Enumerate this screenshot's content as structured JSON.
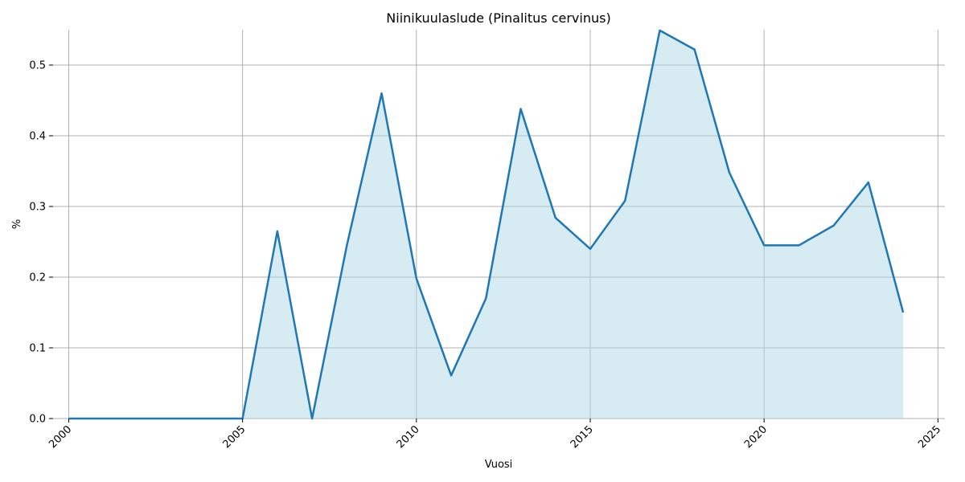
{
  "chart_data": {
    "type": "area",
    "title": "Niinikuulaslude (Pinalitus cervinus)",
    "xlabel": "Vuosi",
    "ylabel": "%",
    "x": [
      2000,
      2001,
      2002,
      2003,
      2004,
      2005,
      2006,
      2007,
      2008,
      2009,
      2010,
      2011,
      2012,
      2013,
      2014,
      2015,
      2016,
      2017,
      2018,
      2019,
      2020,
      2021,
      2022,
      2023,
      2024
    ],
    "series": [
      {
        "values": [
          0,
          0,
          0,
          0,
          0,
          0,
          0.265,
          0,
          0.245,
          0.46,
          0.198,
          0.061,
          0.17,
          0.438,
          0.284,
          0.24,
          0.308,
          0.549,
          0.522,
          0.348,
          0.245,
          0.245,
          0.273,
          0.334,
          0.15
        ],
        "line_color": "#1f77b4",
        "fill_color": "#add8e6"
      }
    ],
    "xlim": [
      1999.55,
      2025.2
    ],
    "ylim": [
      0,
      0.55
    ],
    "xticks": [
      "2000",
      "2005",
      "2010",
      "2015",
      "2020",
      "2025"
    ],
    "yticks": [
      "0.0",
      "0.1",
      "0.2",
      "0.3",
      "0.4",
      "0.5"
    ],
    "grid": true,
    "xtick_rotation": "45"
  }
}
